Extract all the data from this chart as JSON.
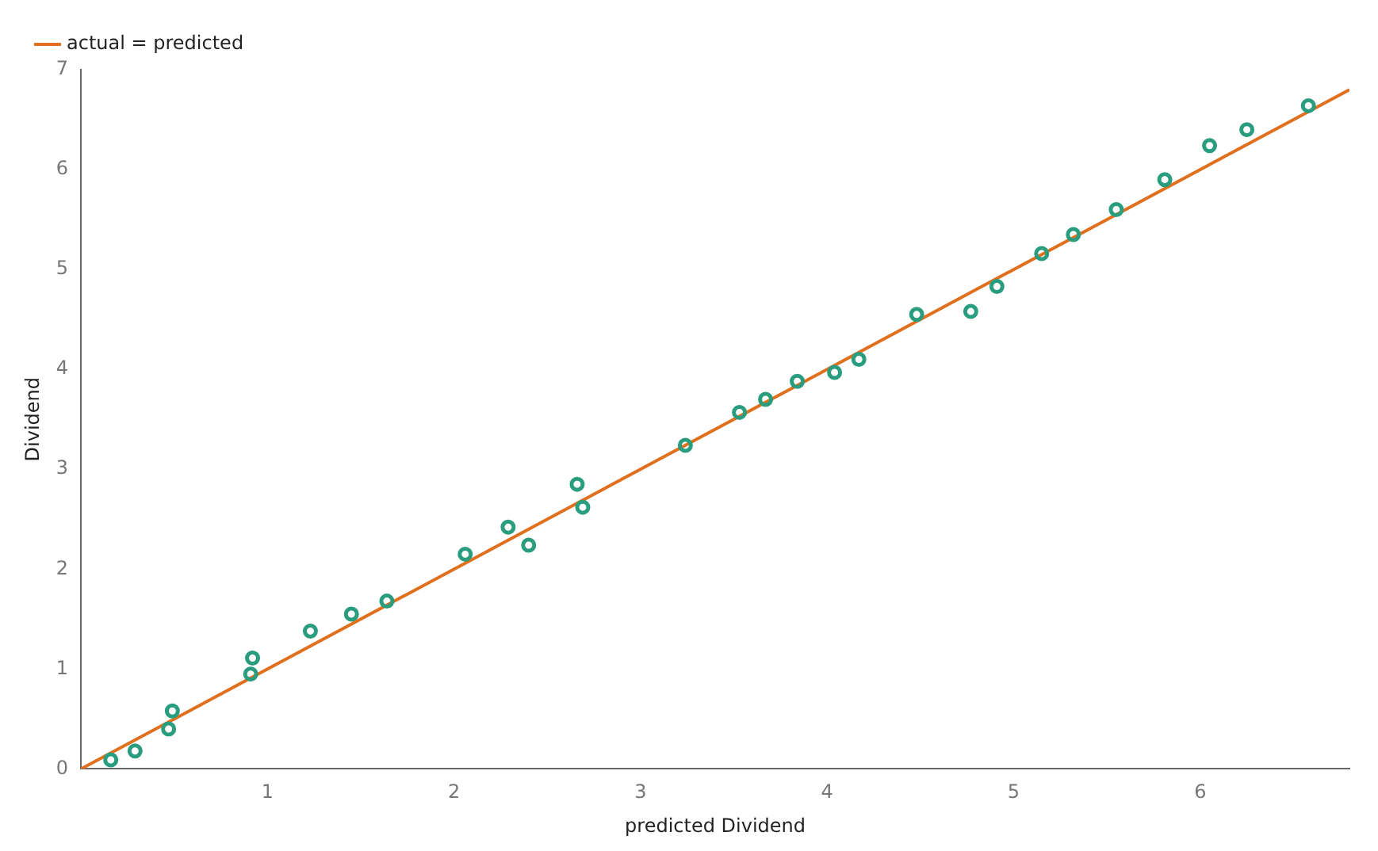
{
  "chart_data": {
    "type": "scatter",
    "xlabel": "predicted Dividend",
    "ylabel": "Dividend",
    "xlim": [
      0,
      6.8
    ],
    "ylim": [
      0,
      7
    ],
    "xticks": [
      1,
      2,
      3,
      4,
      5,
      6
    ],
    "yticks": [
      0,
      1,
      2,
      3,
      4,
      5,
      6,
      7
    ],
    "grid": false,
    "legend": "top left",
    "marker": "circle",
    "series": [
      {
        "type": "scatter",
        "color": "#2a9d7f",
        "x": [
          0.16,
          0.29,
          0.47,
          0.49,
          0.91,
          0.92,
          1.23,
          1.45,
          1.64,
          2.06,
          2.29,
          2.4,
          2.66,
          2.69,
          3.24,
          3.53,
          3.67,
          3.84,
          4.04,
          4.17,
          4.48,
          4.77,
          4.91,
          5.15,
          5.32,
          5.55,
          5.81,
          6.05,
          6.25,
          6.58
        ],
        "values": [
          0.09,
          0.18,
          0.4,
          0.58,
          0.95,
          1.11,
          1.38,
          1.55,
          1.68,
          2.15,
          2.42,
          2.24,
          2.85,
          2.62,
          3.24,
          3.57,
          3.7,
          3.88,
          3.97,
          4.1,
          4.55,
          4.58,
          4.83,
          5.16,
          5.35,
          5.6,
          5.9,
          6.24,
          6.4,
          6.64
        ]
      },
      {
        "type": "line",
        "name": "actual = predicted",
        "color": "#e0701e",
        "x": [
          0,
          6.8
        ],
        "values": [
          0,
          6.8
        ],
        "marker": "none"
      }
    ]
  }
}
